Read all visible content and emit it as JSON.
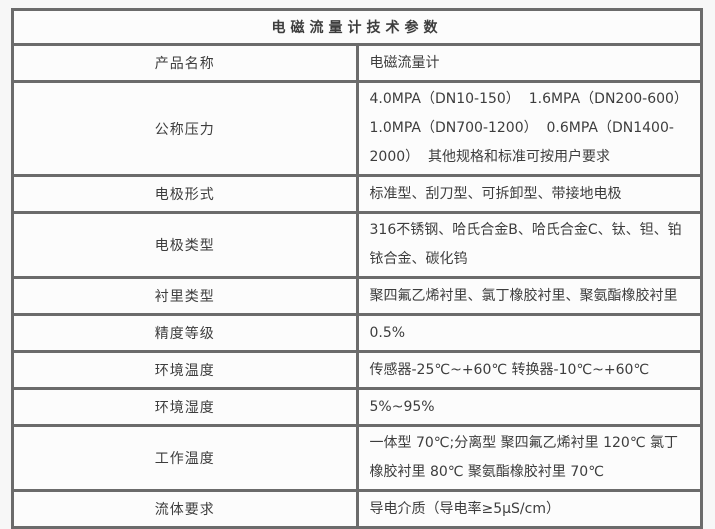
{
  "title": "电磁流量计技术参数",
  "colors": {
    "border": "#6b6b6b",
    "text": "#3d3d3d",
    "title_text": "#1d1d1d",
    "cell_background": "#fcfcfc",
    "page_background": "#f7f7f7"
  },
  "table": {
    "rows": [
      {
        "label": "产品名称",
        "value": "电磁流量计"
      },
      {
        "label": "公称压力",
        "value": "4.0MPA（DN10-150）  1.6MPA（DN200-600）  1.0MPA（DN700-1200）  0.6MPA（DN1400-2000）  其他规格和标准可按用户要求"
      },
      {
        "label": "电极形式",
        "value": "标准型、刮刀型、可拆卸型、带接地电极"
      },
      {
        "label": "电极类型",
        "value": "316不锈钢、哈氏合金B、哈氏合金C、钛、钽、铂铱合金、碳化钨"
      },
      {
        "label": "衬里类型",
        "value": "聚四氟乙烯衬里、氯丁橡胶衬里、聚氨酯橡胶衬里"
      },
      {
        "label": "精度等级",
        "value": "0.5%"
      },
      {
        "label": "环境温度",
        "value": "传感器-25℃~+60℃ 转换器-10℃~+60℃"
      },
      {
        "label": "环境湿度",
        "value": "5%~95%"
      },
      {
        "label": "工作温度",
        "value": "一体型 70℃;分离型 聚四氟乙烯衬里 120℃ 氯丁橡胶衬里 80℃ 聚氨酯橡胶衬里 70℃"
      },
      {
        "label": "流体要求",
        "value": "导电介质（导电率≥5μS/cm）"
      }
    ]
  }
}
